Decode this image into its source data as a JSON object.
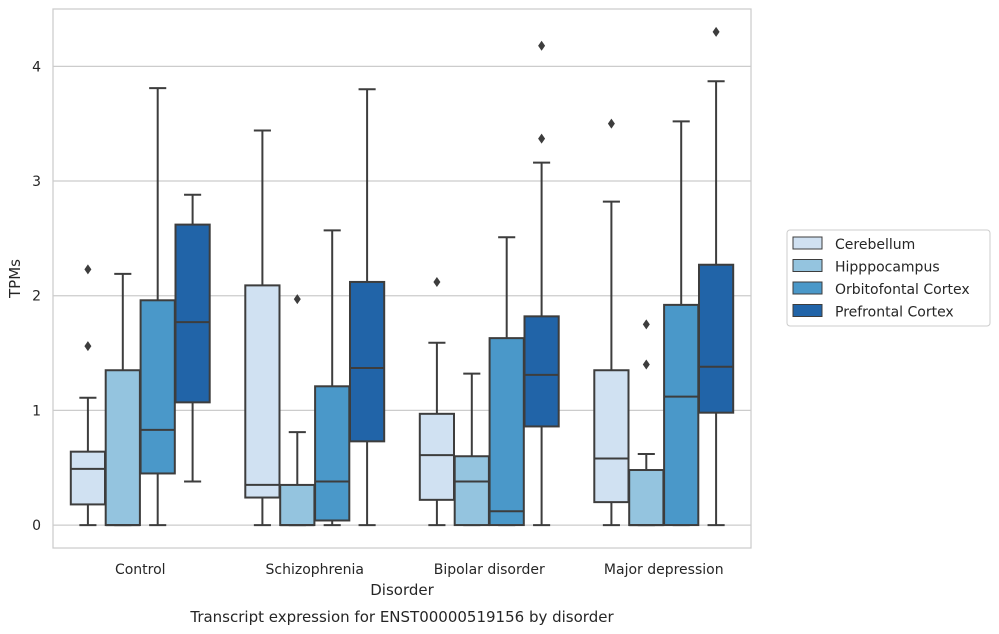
{
  "chart_data": {
    "type": "box",
    "title": "Transcript expression for ENST00000519156 by disorder",
    "xlabel": "Disorder",
    "ylabel": "TPMs",
    "ylim": [
      -0.2,
      4.5
    ],
    "yticks": [
      0,
      1,
      2,
      3,
      4
    ],
    "grid": "horizontal",
    "legend_position": "right",
    "categories": [
      "Control",
      "Schizophrenia",
      "Bipolar disorder",
      "Major depression"
    ],
    "series": [
      {
        "name": "Cerebellum",
        "color": "#d0e1f2",
        "boxes": [
          {
            "whisker_low": 0,
            "q1": 0.18,
            "median": 0.49,
            "q3": 0.64,
            "whisker_high": 1.11,
            "outliers": [
              1.56,
              2.23
            ]
          },
          {
            "whisker_low": 0,
            "q1": 0.24,
            "median": 0.35,
            "q3": 2.09,
            "whisker_high": 3.44,
            "outliers": []
          },
          {
            "whisker_low": 0,
            "q1": 0.22,
            "median": 0.61,
            "q3": 0.97,
            "whisker_high": 1.59,
            "outliers": [
              2.12
            ]
          },
          {
            "whisker_low": 0,
            "q1": 0.2,
            "median": 0.58,
            "q3": 1.35,
            "whisker_high": 2.82,
            "outliers": [
              3.5
            ]
          }
        ]
      },
      {
        "name": "Hipppocampus",
        "color": "#94c4df",
        "boxes": [
          {
            "whisker_low": 0,
            "q1": 0,
            "median": 0,
            "q3": 1.35,
            "whisker_high": 2.19,
            "outliers": []
          },
          {
            "whisker_low": 0,
            "q1": 0,
            "median": 0,
            "q3": 0.35,
            "whisker_high": 0.81,
            "outliers": [
              1.97
            ]
          },
          {
            "whisker_low": 0,
            "q1": 0,
            "median": 0.38,
            "q3": 0.6,
            "whisker_high": 1.32,
            "outliers": []
          },
          {
            "whisker_low": 0,
            "q1": 0,
            "median": 0,
            "q3": 0.48,
            "whisker_high": 0.62,
            "outliers": [
              1.4,
              1.75
            ]
          }
        ]
      },
      {
        "name": "Orbitofontal Cortex",
        "color": "#4a98c9",
        "boxes": [
          {
            "whisker_low": 0,
            "q1": 0.45,
            "median": 0.83,
            "q3": 1.96,
            "whisker_high": 3.81,
            "outliers": []
          },
          {
            "whisker_low": 0,
            "q1": 0.04,
            "median": 0.38,
            "q3": 1.21,
            "whisker_high": 2.57,
            "outliers": []
          },
          {
            "whisker_low": 0,
            "q1": 0,
            "median": 0.12,
            "q3": 1.63,
            "whisker_high": 2.51,
            "outliers": []
          },
          {
            "whisker_low": 0,
            "q1": 0,
            "median": 1.12,
            "q3": 1.92,
            "whisker_high": 3.52,
            "outliers": []
          }
        ]
      },
      {
        "name": "Prefrontal Cortex",
        "color": "#2164a8",
        "boxes": [
          {
            "whisker_low": 0.38,
            "q1": 1.07,
            "median": 1.77,
            "q3": 2.62,
            "whisker_high": 2.88,
            "outliers": []
          },
          {
            "whisker_low": 0,
            "q1": 0.73,
            "median": 1.37,
            "q3": 2.12,
            "whisker_high": 3.8,
            "outliers": []
          },
          {
            "whisker_low": 0,
            "q1": 0.86,
            "median": 1.31,
            "q3": 1.82,
            "whisker_high": 3.16,
            "outliers": [
              3.37,
              4.18
            ]
          },
          {
            "whisker_low": 0,
            "q1": 0.98,
            "median": 1.38,
            "q3": 2.27,
            "whisker_high": 3.87,
            "outliers": [
              4.3
            ]
          }
        ]
      }
    ]
  }
}
